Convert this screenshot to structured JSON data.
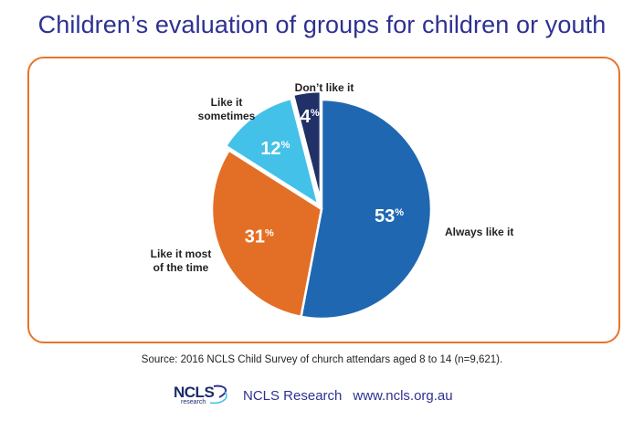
{
  "title": "Children’s evaluation of groups for children or youth",
  "source": "Source: 2016 NCLS Child Survey of church attendars aged 8 to 14 (n=9,621).",
  "footer": {
    "logo_text": "NCLS",
    "logo_subtext": "research",
    "org_name": "NCLS Research",
    "url": "www.ncls.org.au"
  },
  "colors": {
    "always": "#1f68b1",
    "most": "#e36f26",
    "sometimes": "#44c1e8",
    "dont": "#213067",
    "frame": "#e8742a",
    "title": "#2e3192"
  },
  "chart_data": {
    "type": "pie",
    "title": "Children’s evaluation of groups for children or youth",
    "slices": [
      {
        "label": "Always like it",
        "value": 53,
        "value_label": "53",
        "unit": "%",
        "color": "#1f68b1"
      },
      {
        "label": "Like it most of the time",
        "value": 31,
        "value_label": "31",
        "unit": "%",
        "color": "#e36f26"
      },
      {
        "label": "Like it sometimes",
        "value": 12,
        "value_label": "12",
        "unit": "%",
        "color": "#44c1e8"
      },
      {
        "label": "Don’t like it",
        "value": 4,
        "value_label": "4",
        "unit": "%",
        "color": "#213067"
      }
    ]
  }
}
